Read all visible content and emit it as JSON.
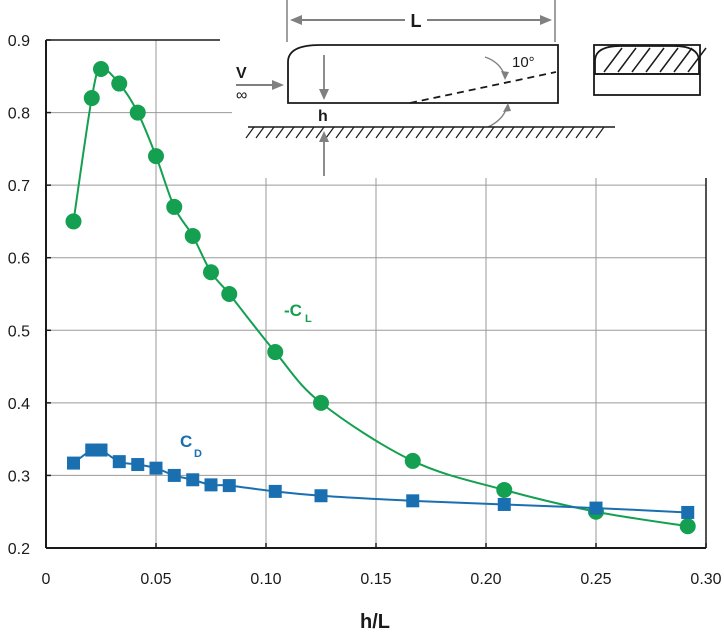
{
  "chart_data": {
    "type": "line",
    "xlabel": "h/L",
    "ylabel": "",
    "xlim": [
      0,
      0.3
    ],
    "ylim": [
      0.2,
      0.9
    ],
    "grid": true,
    "x_ticks": [
      0,
      0.05,
      0.1,
      0.15,
      0.2,
      0.25,
      0.3
    ],
    "x_tick_labels": [
      "0",
      "0.05",
      "0.10",
      "0.15",
      "0.20",
      "0.25",
      "0.30"
    ],
    "y_ticks": [
      0.2,
      0.3,
      0.4,
      0.5,
      0.6,
      0.7,
      0.8,
      0.9
    ],
    "y_tick_labels": [
      "0.2",
      "0.3",
      "0.4",
      "0.5",
      "0.6",
      "0.7",
      "0.8",
      "0.9"
    ],
    "series": [
      {
        "name": "-CL",
        "label_main": "-C",
        "label_sub": "L",
        "color": "#14a050",
        "marker": "circle",
        "points": [
          [
            0.0125,
            0.65
          ],
          [
            0.0208,
            0.82
          ],
          [
            0.025,
            0.86
          ],
          [
            0.0333,
            0.84
          ],
          [
            0.0417,
            0.8
          ],
          [
            0.05,
            0.74
          ],
          [
            0.0583,
            0.67
          ],
          [
            0.0667,
            0.63
          ],
          [
            0.075,
            0.58
          ],
          [
            0.0833,
            0.55
          ],
          [
            0.1042,
            0.47
          ],
          [
            0.125,
            0.4
          ],
          [
            0.1667,
            0.32
          ],
          [
            0.2083,
            0.28
          ],
          [
            0.25,
            0.25
          ],
          [
            0.2917,
            0.23
          ]
        ]
      },
      {
        "name": "CD",
        "label_main": "C",
        "label_sub": "D",
        "color": "#1a6fb0",
        "marker": "square",
        "points": [
          [
            0.0125,
            0.317
          ],
          [
            0.0208,
            0.335
          ],
          [
            0.025,
            0.335
          ],
          [
            0.0333,
            0.319
          ],
          [
            0.0417,
            0.315
          ],
          [
            0.05,
            0.31
          ],
          [
            0.0583,
            0.3
          ],
          [
            0.0667,
            0.294
          ],
          [
            0.075,
            0.287
          ],
          [
            0.0833,
            0.286
          ],
          [
            0.1042,
            0.278
          ],
          [
            0.125,
            0.272
          ],
          [
            0.1667,
            0.265
          ],
          [
            0.2083,
            0.26
          ],
          [
            0.25,
            0.255
          ],
          [
            0.2917,
            0.249
          ]
        ]
      }
    ]
  },
  "diagram": {
    "length_label": "L",
    "gap_label": "h",
    "velocity_label": "V",
    "velocity_sub": "∞",
    "angle_label": "10°"
  },
  "colors": {
    "grid": "#9a9a9a",
    "axis": "#1a1a1a",
    "diagram": "#808080"
  }
}
